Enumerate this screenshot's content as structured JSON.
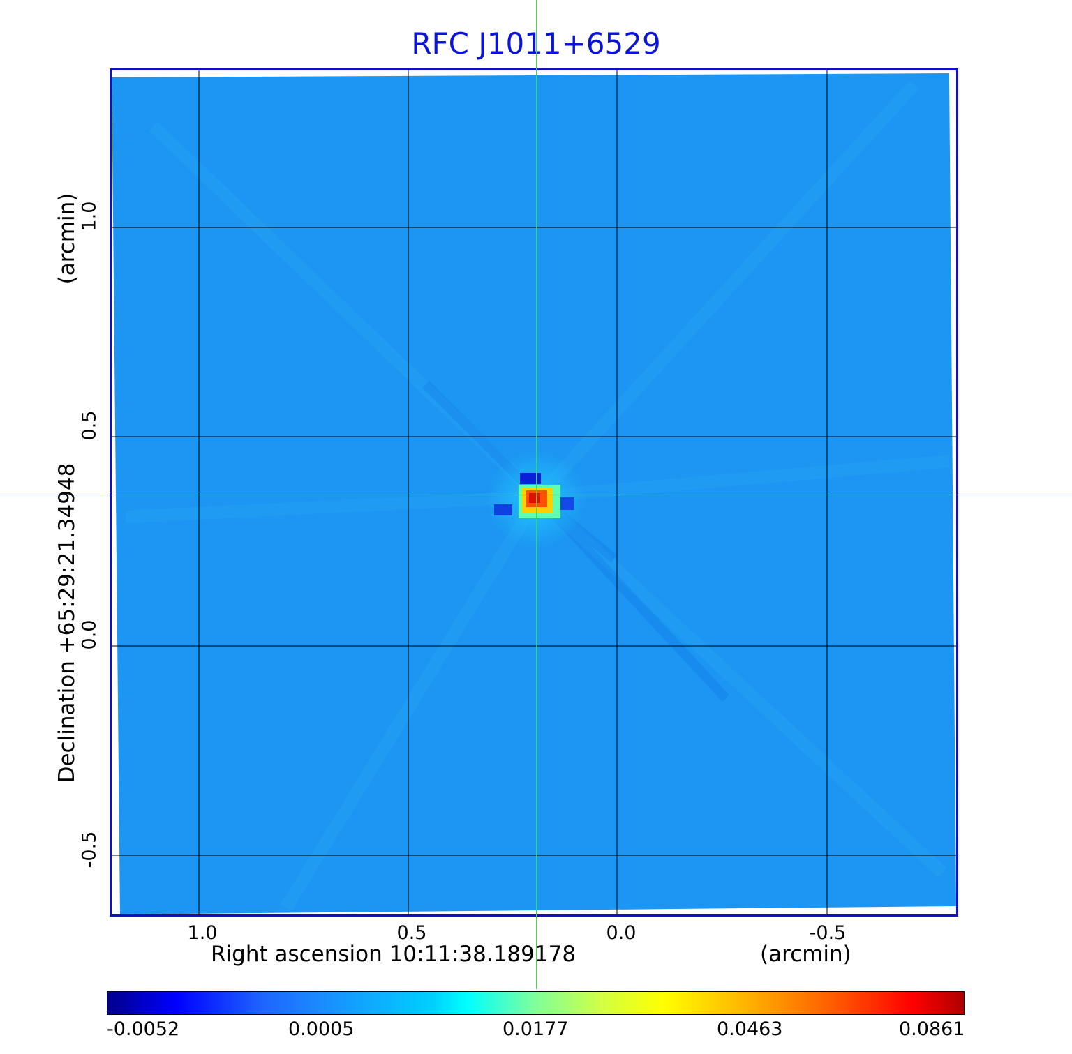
{
  "title": "RFC J1011+6529",
  "colors": {
    "title": "#0a14d6",
    "frame": "#1010c8",
    "crosshair": "#2ee82e",
    "background_map": "#1c96f2"
  },
  "y_axis": {
    "label_main": "Declination  +65:29:21.34948",
    "label_unit": "(arcmin)",
    "ticks": [
      "1.0",
      "0.5",
      "0.0",
      "-0.5"
    ]
  },
  "x_axis": {
    "label_main": "Right ascension  10:11:38.189178",
    "label_unit": "(arcmin)",
    "ticks": [
      "1.0",
      "0.5",
      "0.0",
      "-0.5"
    ]
  },
  "colorbar": {
    "ticks": [
      "-0.0052",
      "0.0005",
      "0.0177",
      "0.0463",
      "0.0861"
    ]
  }
}
